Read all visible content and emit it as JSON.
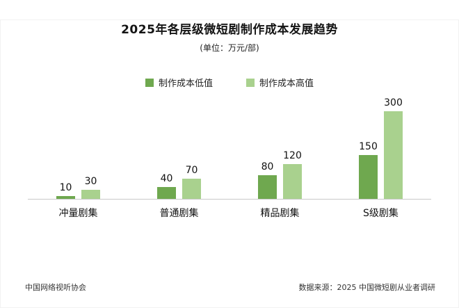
{
  "chart_data": {
    "type": "bar",
    "title": "2025年各层级微短剧制作成本发展趋势",
    "subtitle": "(单位：万元/部)",
    "categories": [
      "冲量剧集",
      "普通剧集",
      "精品剧集",
      "S级剧集"
    ],
    "series": [
      {
        "name": "制作成本低值",
        "color": "#6fa84f",
        "values": [
          10,
          40,
          80,
          150
        ]
      },
      {
        "name": "制作成本高值",
        "color": "#a9d18e",
        "values": [
          30,
          70,
          120,
          300
        ]
      }
    ],
    "ylim": [
      0,
      320
    ],
    "grid": false,
    "legend_position": "top",
    "bar_labels_shown": true
  },
  "footer": {
    "left": "中国网络视听协会",
    "right": "数据来源：2025 中国微短剧从业者调研"
  }
}
